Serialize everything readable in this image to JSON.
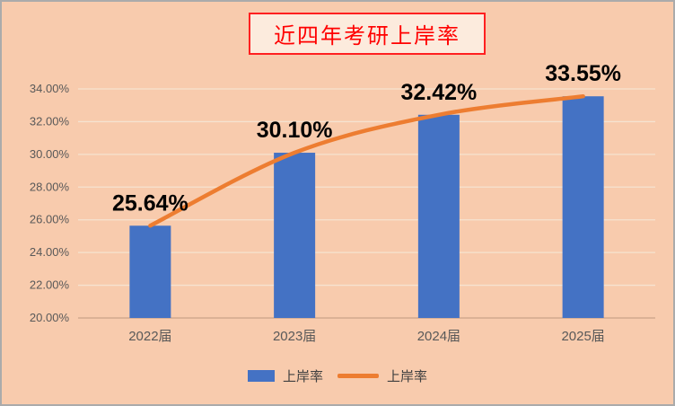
{
  "title": "近四年考研上岸率",
  "legend": {
    "bar_label": "上岸率",
    "line_label": "上岸率"
  },
  "colors": {
    "background": "#F8CBAD",
    "bar": "#4472C4",
    "line": "#ED7D31",
    "title_text": "#FF0000",
    "title_border": "#FF2020",
    "axis_text": "#595959",
    "gridline": "#F6E3D0",
    "axis_line": "#C9A488",
    "data_label": "#000000"
  },
  "chart_data": {
    "type": "combo",
    "title": "近四年考研上岸率",
    "categories": [
      "2022届",
      "2023届",
      "2024届",
      "2025届"
    ],
    "series": [
      {
        "name": "上岸率",
        "type": "bar",
        "values": [
          25.64,
          30.1,
          32.42,
          33.55
        ]
      },
      {
        "name": "上岸率",
        "type": "line",
        "values": [
          25.64,
          30.1,
          32.42,
          33.55
        ]
      }
    ],
    "data_labels": [
      "25.64%",
      "30.10%",
      "32.42%",
      "33.55%"
    ],
    "xlabel": "",
    "ylabel": "",
    "ylim": [
      20,
      34
    ],
    "ytick_step": 2,
    "yticks": [
      "20.00%",
      "22.00%",
      "24.00%",
      "26.00%",
      "28.00%",
      "30.00%",
      "32.00%",
      "34.00%"
    ],
    "grid": true,
    "legend_position": "bottom"
  }
}
